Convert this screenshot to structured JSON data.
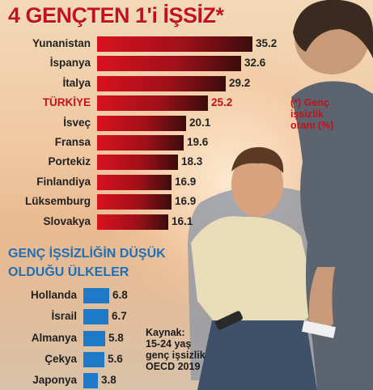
{
  "chart_data": {
    "type": "bar",
    "title": "4 GENÇTEN 1'i İŞSİZ*",
    "note": [
      "(*) Genç",
      "işsizlik",
      "oranı (%)"
    ],
    "subtitle": [
      "GENÇ İŞSİZLİĞİN DÜŞÜK",
      "OLDUĞU ÜLKELER"
    ],
    "source": [
      "Kaynak:",
      "15-24 yaş",
      "genç işsizlik",
      "OECD 2019"
    ],
    "highlight_category": "TÜRKİYE",
    "colors": {
      "high": "#c4121a",
      "low": "#1f79c9",
      "highlight_text": "#c4121a"
    },
    "series": [
      {
        "categories": [
          "Yunanistan",
          "İspanya",
          "İtalya",
          "TÜRKİYE",
          "İsveç",
          "Fransa",
          "Portekiz",
          "Finlandiya",
          "Lüksemburg",
          "Slovakya"
        ],
        "values": [
          35.2,
          32.6,
          29.2,
          25.2,
          20.1,
          19.6,
          18.3,
          16.9,
          16.9,
          16.1
        ],
        "labels": [
          "35.2",
          "32.6",
          "29.2",
          "25.2",
          "20.1",
          "19.6",
          "18.3",
          "16.9",
          "16.9",
          "16.1"
        ]
      },
      {
        "categories": [
          "Hollanda",
          "İsrail",
          "Almanya",
          "Çekya",
          "Japonya"
        ],
        "values": [
          6.8,
          6.7,
          5.8,
          5.6,
          3.8
        ],
        "labels": [
          "6.8",
          "6.7",
          "5.8",
          "5.6",
          "3.8"
        ]
      }
    ]
  }
}
